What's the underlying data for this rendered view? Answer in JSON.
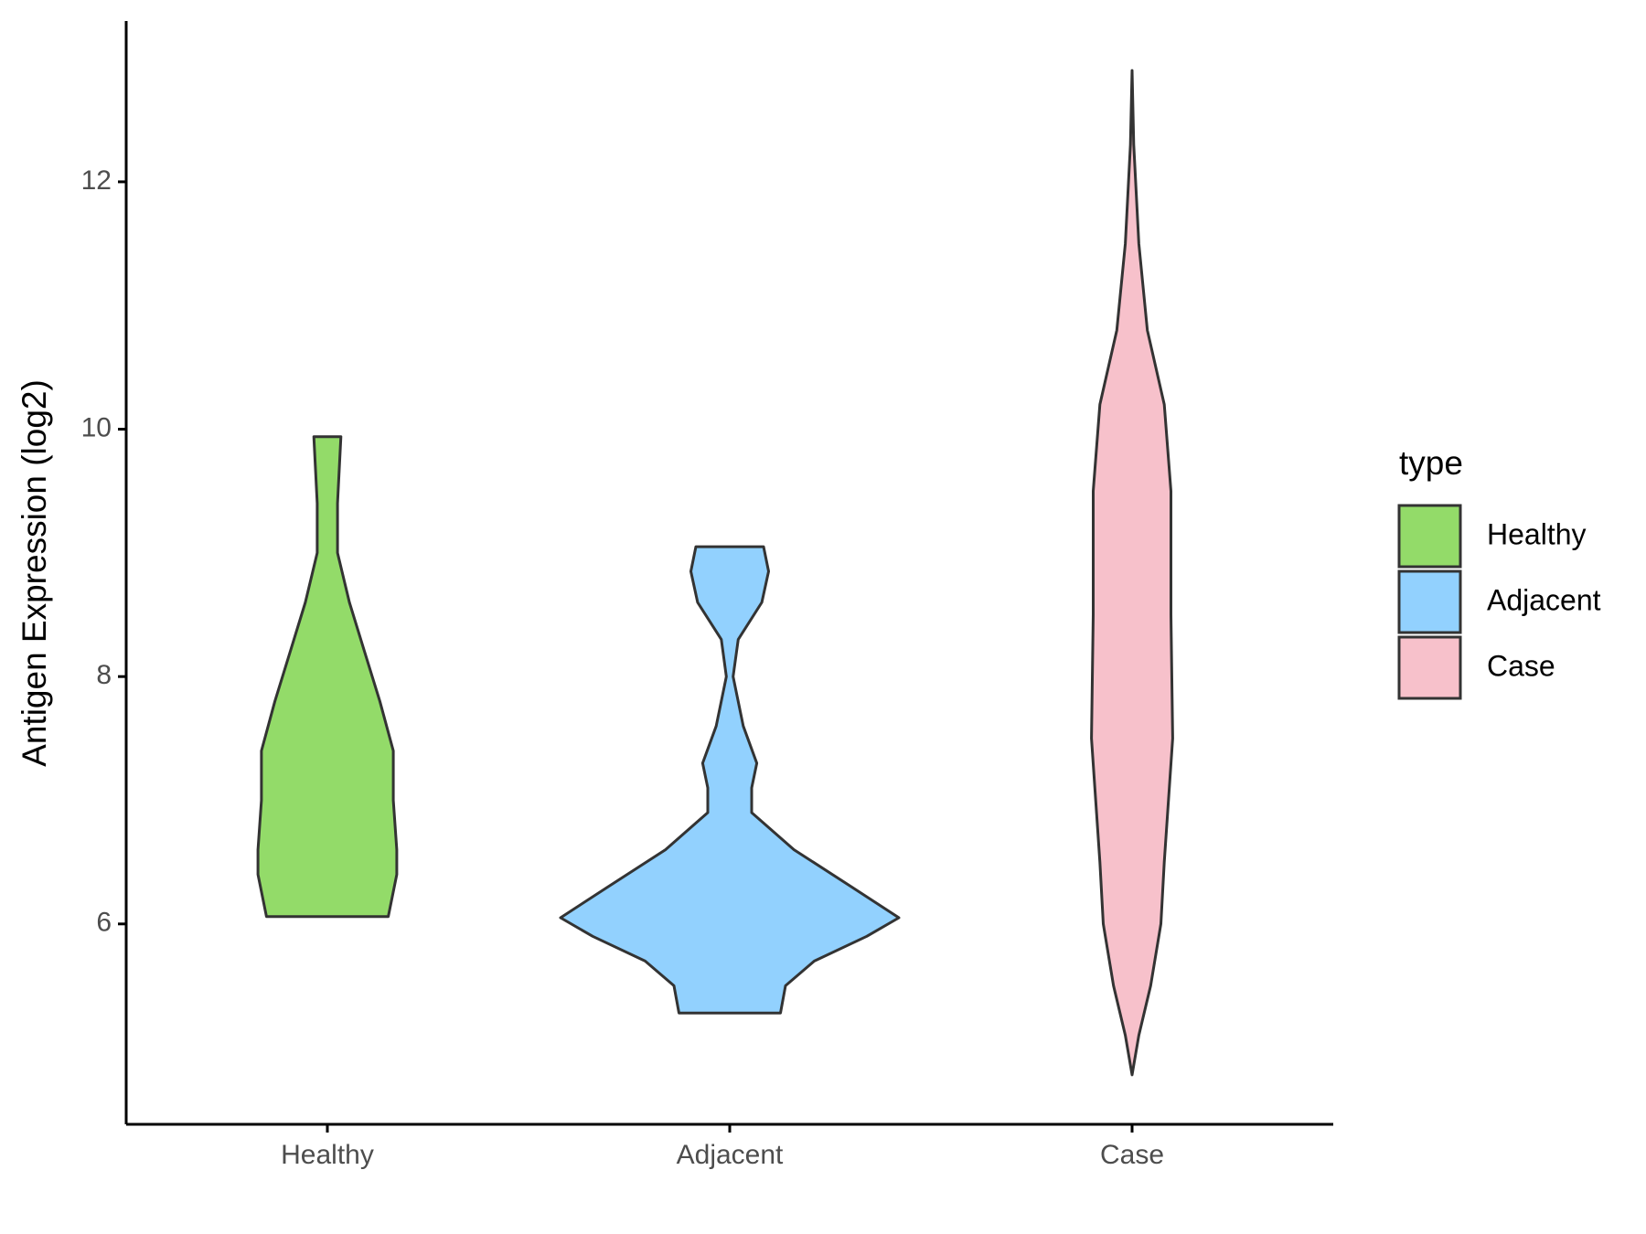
{
  "chart_data": {
    "type": "violin",
    "y_label": "Antigen Expression (log2)",
    "categories": [
      "Healthy",
      "Adjacent",
      "Case"
    ],
    "legend_title": "type",
    "legend_position": "right",
    "ylim": [
      4.38,
      13.3
    ],
    "yticks": [
      6,
      8,
      10,
      12
    ],
    "series": [
      {
        "name": "Healthy",
        "color": "#93db69",
        "y": [
          6.06,
          6.4,
          6.6,
          7.0,
          7.4,
          7.8,
          8.2,
          8.6,
          9.0,
          9.4,
          9.94
        ],
        "width": [
          0.36,
          0.41,
          0.41,
          0.39,
          0.39,
          0.31,
          0.22,
          0.13,
          0.06,
          0.06,
          0.08
        ]
      },
      {
        "name": "Adjacent",
        "color": "#92d1fe",
        "y": [
          5.28,
          5.5,
          5.7,
          5.9,
          6.05,
          6.3,
          6.6,
          6.9,
          7.1,
          7.3,
          7.6,
          8.0,
          8.3,
          8.6,
          8.85,
          9.05
        ],
        "width": [
          0.3,
          0.33,
          0.5,
          0.81,
          1.0,
          0.72,
          0.38,
          0.13,
          0.13,
          0.16,
          0.08,
          0.02,
          0.05,
          0.19,
          0.23,
          0.2
        ]
      },
      {
        "name": "Case",
        "color": "#f7c1cb",
        "y": [
          4.78,
          5.1,
          5.5,
          6.0,
          6.5,
          7.5,
          8.5,
          9.5,
          10.2,
          10.8,
          11.5,
          12.3,
          12.9
        ],
        "width": [
          0,
          0.04,
          0.11,
          0.17,
          0.19,
          0.24,
          0.23,
          0.23,
          0.19,
          0.09,
          0.04,
          0.01,
          0
        ]
      }
    ]
  }
}
